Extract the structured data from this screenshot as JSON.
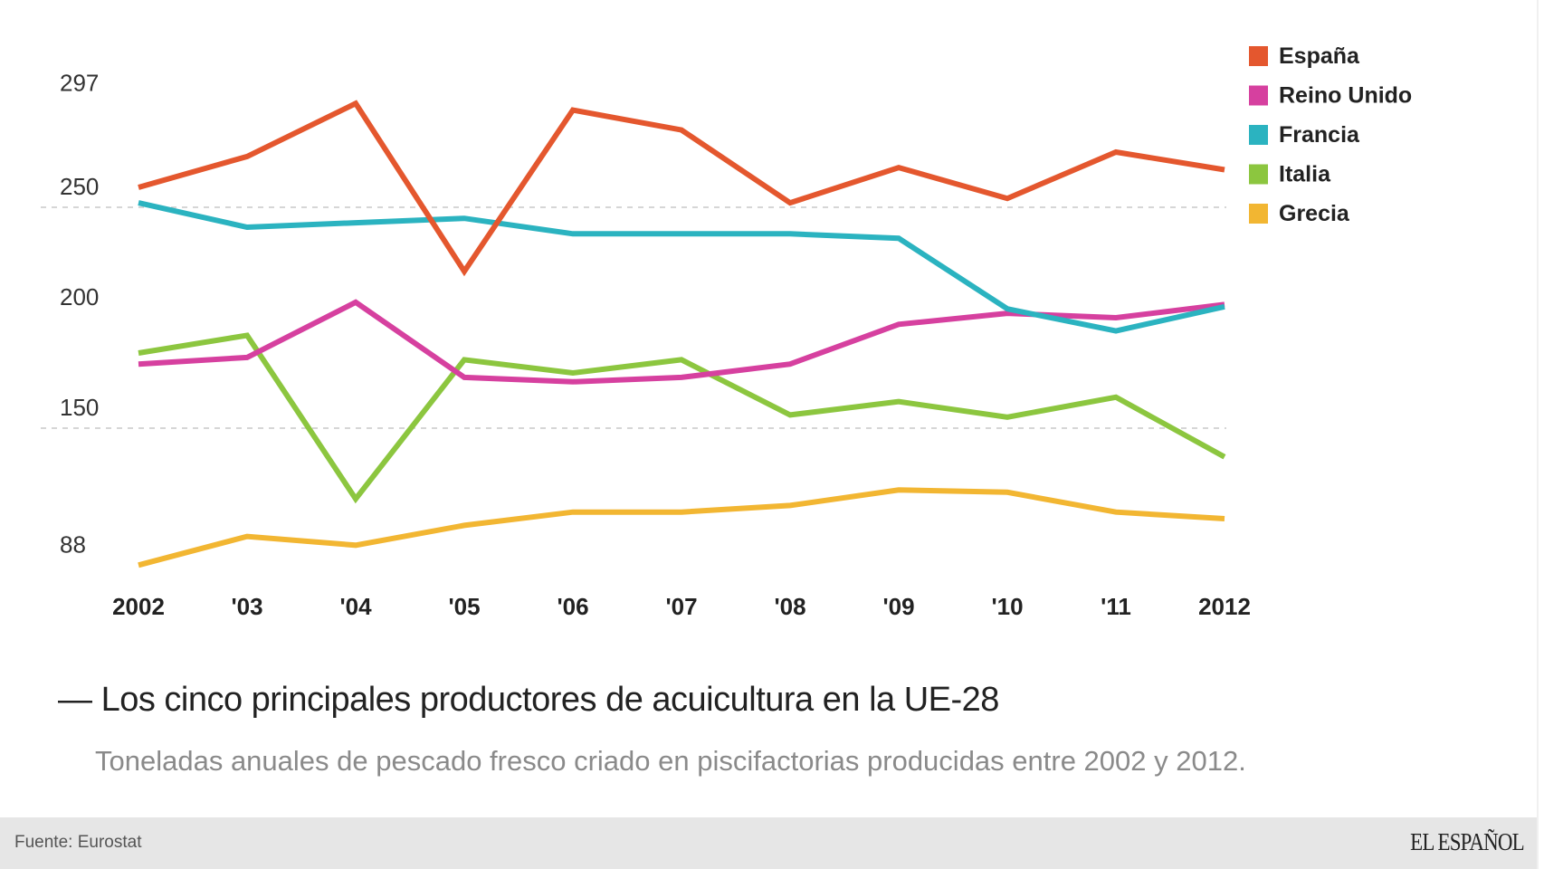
{
  "chart_data": {
    "type": "line",
    "title": "Los cinco principales productores de acuicultura en la UE-28",
    "title_prefix": "—",
    "subtitle": "Toneladas anuales de pescado fresco criado en piscifactorias producidas entre 2002 y 2012.",
    "xlabel": "",
    "ylabel": "",
    "x": [
      2002,
      2003,
      2004,
      2005,
      2006,
      2007,
      2008,
      2009,
      2010,
      2011,
      2012
    ],
    "x_tick_labels": [
      "2002",
      "'03",
      "'04",
      "'05",
      "'06",
      "'07",
      "'08",
      "'09",
      "'10",
      "'11",
      "2012"
    ],
    "y_ticks": [
      297,
      250,
      200,
      150,
      88
    ],
    "y_gridlines": [
      250,
      150
    ],
    "ylim": [
      88,
      297
    ],
    "grid": true,
    "legend_position": "top-right",
    "series": [
      {
        "name": "España",
        "color": "#e4572e",
        "values": [
          259,
          273,
          297,
          221,
          294,
          285,
          252,
          268,
          254,
          275,
          267
        ]
      },
      {
        "name": "Reino Unido",
        "color": "#d6409f",
        "values": [
          179,
          182,
          207,
          173,
          171,
          173,
          179,
          197,
          202,
          200,
          206
        ]
      },
      {
        "name": "Francia",
        "color": "#2bb3c0",
        "values": [
          252,
          241,
          243,
          245,
          238,
          238,
          238,
          236,
          204,
          194,
          205
        ]
      },
      {
        "name": "Italia",
        "color": "#8cc63f",
        "values": [
          184,
          192,
          118,
          181,
          175,
          181,
          156,
          162,
          155,
          164,
          137
        ]
      },
      {
        "name": "Grecia",
        "color": "#f2b632",
        "values": [
          88,
          101,
          97,
          106,
          112,
          112,
          115,
          122,
          121,
          112,
          109
        ]
      }
    ]
  },
  "footer": {
    "source": "Fuente: Eurostat",
    "brand": "EL ESPAÑOL"
  }
}
